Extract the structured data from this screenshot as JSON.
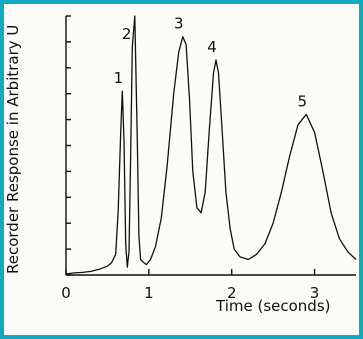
{
  "chart_data": {
    "type": "line",
    "title": "",
    "xlabel": "Time (seconds)",
    "ylabel": "Recorder Response in Arbitrary U",
    "xlim": [
      0,
      3.5
    ],
    "ylim": [
      0,
      100
    ],
    "x_ticks": [
      {
        "value": 0,
        "label": "0"
      },
      {
        "value": 1,
        "label": "1"
      },
      {
        "value": 2,
        "label": "2"
      },
      {
        "value": 3,
        "label": "3"
      }
    ],
    "y_tick_count": 10,
    "grid": false,
    "series": [
      {
        "x": [
          0.0,
          0.1,
          0.2,
          0.3,
          0.4,
          0.5,
          0.55,
          0.6,
          0.63,
          0.66,
          0.68,
          0.7,
          0.72,
          0.74,
          0.76,
          0.78,
          0.8,
          0.83,
          0.86,
          0.88,
          0.9,
          0.93,
          0.97,
          1.02,
          1.08,
          1.15,
          1.22,
          1.3,
          1.36,
          1.41,
          1.45,
          1.49,
          1.53,
          1.58,
          1.63,
          1.68,
          1.73,
          1.78,
          1.81,
          1.84,
          1.88,
          1.93,
          1.98,
          2.03,
          2.1,
          2.2,
          2.3,
          2.4,
          2.5,
          2.6,
          2.7,
          2.8,
          2.9,
          3.0,
          3.1,
          3.2,
          3.3,
          3.4,
          3.5
        ],
        "y": [
          0.4,
          0.8,
          1.0,
          1.4,
          2.2,
          3.4,
          4.8,
          8,
          25,
          55,
          71,
          52,
          12,
          3,
          9,
          45,
          88,
          100,
          52,
          15,
          6,
          5,
          4,
          6,
          11,
          22,
          42,
          70,
          86,
          92,
          89,
          68,
          40,
          26,
          24,
          32,
          56,
          78,
          83,
          78,
          58,
          32,
          18,
          10,
          7,
          6,
          8,
          12,
          20,
          32,
          46,
          58,
          62,
          55,
          40,
          24,
          14,
          9,
          6
        ]
      }
    ],
    "peak_labels": [
      {
        "label": "1",
        "x": 0.68,
        "y": 71
      },
      {
        "label": "2",
        "x": 0.78,
        "y": 88
      },
      {
        "label": "3",
        "x": 1.41,
        "y": 92
      },
      {
        "label": "4",
        "x": 1.81,
        "y": 83
      },
      {
        "label": "5",
        "x": 2.9,
        "y": 62
      }
    ]
  }
}
